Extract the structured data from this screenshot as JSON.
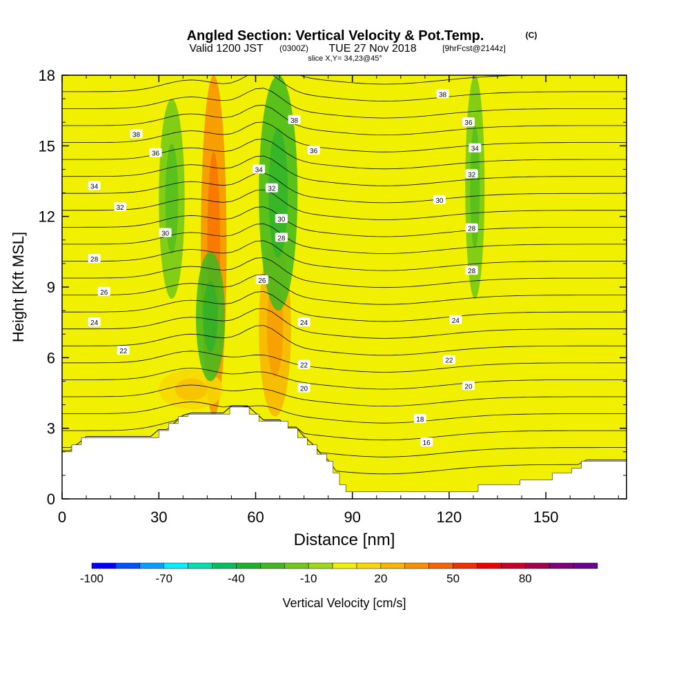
{
  "title": {
    "main": "Angled Section: Vertical Velocity & Pot.Temp.",
    "main_unit": "(C)",
    "valid_prefix": "Valid 1200 JST",
    "valid_z": "(0300Z)",
    "valid_date": "TUE 27 Nov 2018",
    "fcst": "[9hrFcst@2144z]",
    "slice": "slice X,Y= 34,23@45°"
  },
  "colorbar": {
    "label": "Vertical Velocity [cm/s]",
    "tick_labels": [
      "-100",
      "-70",
      "-40",
      "-10",
      "20",
      "50",
      "80"
    ],
    "colors": [
      "#0000ff",
      "#0050ff",
      "#00a0ff",
      "#00f0ff",
      "#00e0b0",
      "#00c060",
      "#20b030",
      "#40b820",
      "#70c818",
      "#a0d818",
      "#f0f000",
      "#f8d800",
      "#f8b400",
      "#f89000",
      "#f86400",
      "#f03000",
      "#f00000",
      "#c80028",
      "#a00050",
      "#800078",
      "#680090"
    ]
  },
  "chart_data": {
    "type": "heatmap",
    "xlabel": "Distance [nm]",
    "ylabel": "Height [Kft MSL]",
    "xlim": [
      0,
      175
    ],
    "ylim": [
      0,
      18
    ],
    "xticks": [
      0,
      30,
      60,
      90,
      120,
      150
    ],
    "yticks": [
      0,
      3,
      6,
      9,
      12,
      15,
      18
    ],
    "grid": false,
    "field": "Vertical Velocity [cm/s]",
    "contour_field": "Potential Temperature (C)",
    "contour_labels": [
      {
        "text": "38",
        "x": 23,
        "y": 15.5
      },
      {
        "text": "36",
        "x": 29,
        "y": 14.7
      },
      {
        "text": "34",
        "x": 10,
        "y": 13.3
      },
      {
        "text": "32",
        "x": 18,
        "y": 12.4
      },
      {
        "text": "30",
        "x": 32,
        "y": 11.3
      },
      {
        "text": "28",
        "x": 10,
        "y": 10.2
      },
      {
        "text": "26",
        "x": 13,
        "y": 8.8
      },
      {
        "text": "24",
        "x": 10,
        "y": 7.5
      },
      {
        "text": "22",
        "x": 19,
        "y": 6.3
      },
      {
        "text": "38",
        "x": 72,
        "y": 16.1
      },
      {
        "text": "36",
        "x": 78,
        "y": 14.8
      },
      {
        "text": "34",
        "x": 61,
        "y": 14.0
      },
      {
        "text": "32",
        "x": 65,
        "y": 13.2
      },
      {
        "text": "30",
        "x": 68,
        "y": 11.9
      },
      {
        "text": "28",
        "x": 68,
        "y": 11.1
      },
      {
        "text": "26",
        "x": 62,
        "y": 9.3
      },
      {
        "text": "24",
        "x": 75,
        "y": 7.5
      },
      {
        "text": "22",
        "x": 75,
        "y": 5.7
      },
      {
        "text": "20",
        "x": 75,
        "y": 4.7
      },
      {
        "text": "38",
        "x": 118,
        "y": 17.2
      },
      {
        "text": "36",
        "x": 126,
        "y": 16.0
      },
      {
        "text": "34",
        "x": 128,
        "y": 14.9
      },
      {
        "text": "32",
        "x": 127,
        "y": 13.8
      },
      {
        "text": "30",
        "x": 117,
        "y": 12.7
      },
      {
        "text": "28",
        "x": 127,
        "y": 11.5
      },
      {
        "text": "28",
        "x": 127,
        "y": 9.7
      },
      {
        "text": "24",
        "x": 122,
        "y": 7.6
      },
      {
        "text": "22",
        "x": 120,
        "y": 5.9
      },
      {
        "text": "20",
        "x": 126,
        "y": 4.8
      },
      {
        "text": "18",
        "x": 111,
        "y": 3.4
      },
      {
        "text": "16",
        "x": 113,
        "y": 2.4
      }
    ],
    "terrain": [
      [
        0,
        2.0
      ],
      [
        3,
        2.0
      ],
      [
        3,
        2.3
      ],
      [
        6,
        2.3
      ],
      [
        6,
        2.6
      ],
      [
        30,
        2.6
      ],
      [
        30,
        2.9
      ],
      [
        33,
        2.9
      ],
      [
        33,
        3.2
      ],
      [
        36,
        3.2
      ],
      [
        36,
        3.5
      ],
      [
        39,
        3.5
      ],
      [
        39,
        3.6
      ],
      [
        52,
        3.6
      ],
      [
        52,
        3.9
      ],
      [
        58,
        3.9
      ],
      [
        58,
        3.6
      ],
      [
        61,
        3.6
      ],
      [
        61,
        3.3
      ],
      [
        70,
        3.3
      ],
      [
        70,
        3.0
      ],
      [
        73,
        3.0
      ],
      [
        73,
        2.6
      ],
      [
        76,
        2.6
      ],
      [
        76,
        2.3
      ],
      [
        79,
        2.3
      ],
      [
        79,
        1.9
      ],
      [
        82,
        1.9
      ],
      [
        82,
        1.6
      ],
      [
        84,
        1.6
      ],
      [
        84,
        1.1
      ],
      [
        86,
        1.1
      ],
      [
        86,
        0.6
      ],
      [
        88,
        0.6
      ],
      [
        88,
        0.3
      ],
      [
        129,
        0.3
      ],
      [
        129,
        0.6
      ],
      [
        142,
        0.6
      ],
      [
        142,
        0.8
      ],
      [
        152,
        0.8
      ],
      [
        152,
        1.1
      ],
      [
        158,
        1.1
      ],
      [
        158,
        1.3
      ],
      [
        161,
        1.3
      ],
      [
        161,
        1.6
      ],
      [
        175,
        1.6
      ]
    ],
    "updraft_regions": [
      {
        "xc": 47,
        "width": 8,
        "ymin": 3.5,
        "ymax": 18,
        "value": 30
      },
      {
        "xc": 66,
        "width": 10,
        "ymin": 3.5,
        "ymax": 11,
        "value": 25
      },
      {
        "xc": 40,
        "width": 20,
        "ymin": 3.8,
        "ymax": 5.5,
        "value": 15
      }
    ],
    "downdraft_regions": [
      {
        "xc": 34,
        "width": 8,
        "ymin": 8.5,
        "ymax": 17,
        "value": -20
      },
      {
        "xc": 46,
        "width": 9,
        "ymin": 5,
        "ymax": 10.5,
        "value": -25
      },
      {
        "xc": 67,
        "width": 12,
        "ymin": 8,
        "ymax": 18,
        "value": -30
      },
      {
        "xc": 128,
        "width": 6,
        "ymin": 8.5,
        "ymax": 18,
        "value": -15
      }
    ]
  }
}
